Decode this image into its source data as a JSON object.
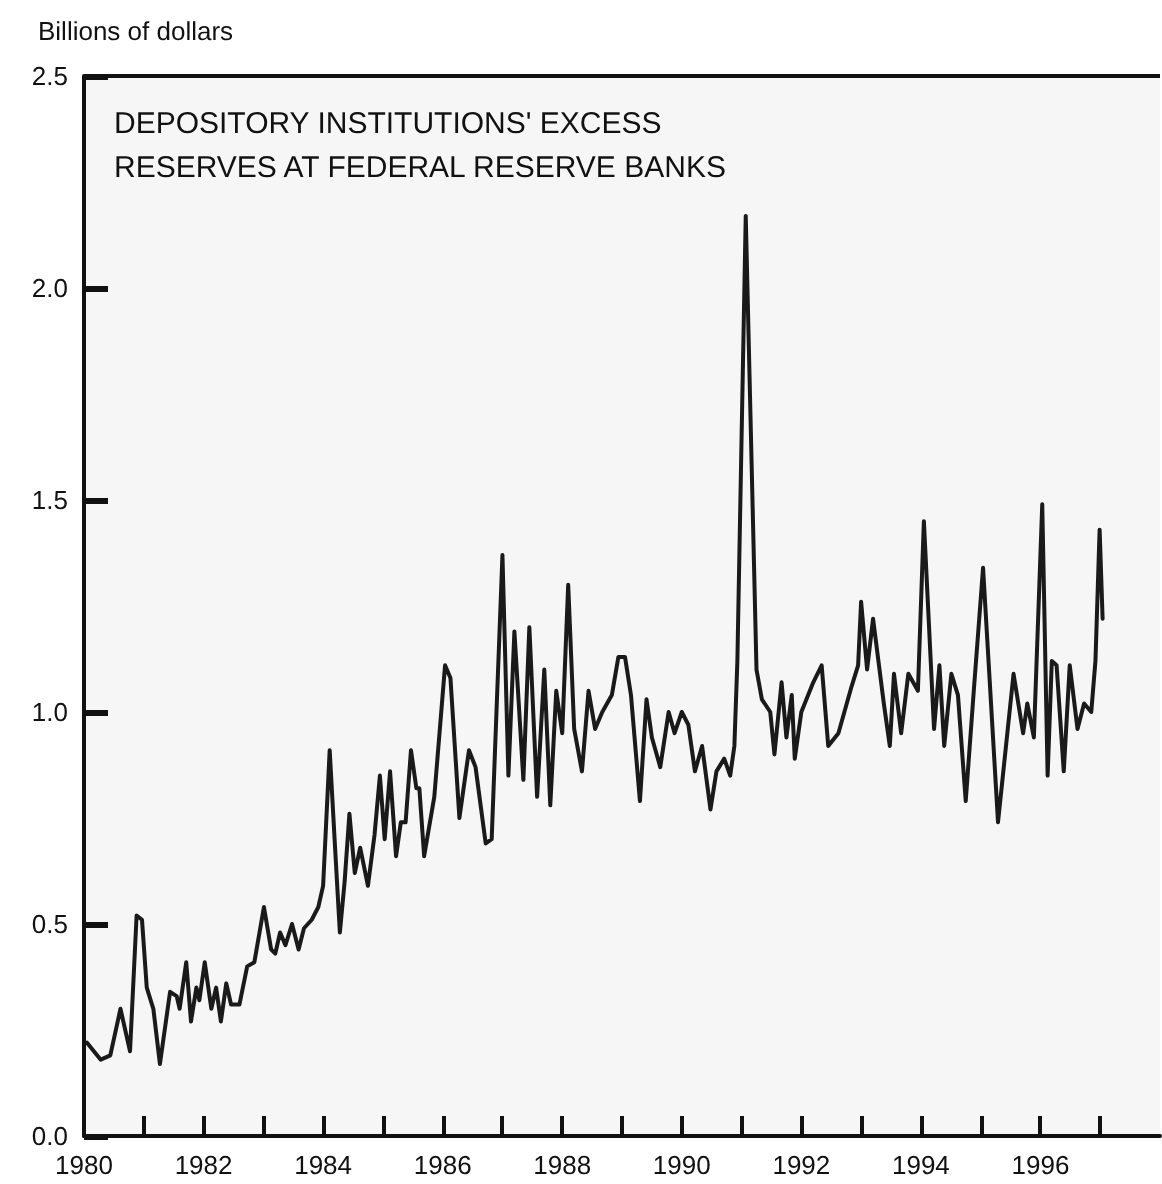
{
  "chart_data": {
    "type": "line",
    "title": "DEPOSITORY INSTITUTIONS' EXCESS\nRESERVES AT FEDERAL RESERVE BANKS",
    "ylabel": "Billions of dollars",
    "xlim": [
      1980,
      1998
    ],
    "xticks": [
      1980,
      {
        "value": 1981,
        "label": null
      },
      1982,
      {
        "value": 1983,
        "label": null
      },
      1984,
      {
        "value": 1985,
        "label": null
      },
      1986,
      {
        "value": 1987,
        "label": null
      },
      1988,
      {
        "value": 1989,
        "label": null
      },
      1990,
      {
        "value": 1991,
        "label": null
      },
      1992,
      {
        "value": 1993,
        "label": null
      },
      1994,
      {
        "value": 1995,
        "label": null
      },
      1996,
      {
        "value": 1997,
        "label": null
      }
    ],
    "ylim": [
      0,
      2.5
    ],
    "yticks": [
      {
        "value": 0,
        "label": "0.0"
      },
      0.5,
      {
        "value": 1,
        "label": "1.0"
      },
      1.5,
      {
        "value": 2,
        "label": "2.0"
      },
      2.5
    ],
    "grid": false,
    "marker": "none",
    "line_style": "solid",
    "series": [
      {
        "color": "#1a1a1a",
        "x": [
          1980.05,
          1980.28,
          1980.44,
          1980.61,
          1980.77,
          1980.88,
          1980.97,
          1981.05,
          1981.16,
          1981.27,
          1981.44,
          1981.55,
          1981.6,
          1981.71,
          1981.79,
          1981.88,
          1981.93,
          1982.02,
          1982.13,
          1982.21,
          1982.29,
          1982.38,
          1982.46,
          1982.6,
          1982.73,
          1982.85,
          1983.01,
          1983.13,
          1983.2,
          1983.28,
          1983.37,
          1983.48,
          1983.59,
          1983.68,
          1983.81,
          1983.92,
          1984.0,
          1984.11,
          1984.2,
          1984.28,
          1984.36,
          1984.44,
          1984.53,
          1984.62,
          1984.75,
          1984.86,
          1984.95,
          1985.03,
          1985.12,
          1985.22,
          1985.3,
          1985.38,
          1985.47,
          1985.56,
          1985.61,
          1985.69,
          1985.86,
          1986.04,
          1986.13,
          1986.28,
          1986.44,
          1986.55,
          1986.72,
          1986.82,
          1986.9,
          1987.0,
          1987.1,
          1987.2,
          1987.35,
          1987.45,
          1987.58,
          1987.7,
          1987.8,
          1987.9,
          1988.0,
          1988.1,
          1988.2,
          1988.33,
          1988.44,
          1988.55,
          1988.67,
          1988.83,
          1988.94,
          1989.05,
          1989.15,
          1989.3,
          1989.41,
          1989.5,
          1989.64,
          1989.78,
          1989.88,
          1990.0,
          1990.11,
          1990.22,
          1990.34,
          1990.48,
          1990.58,
          1990.71,
          1990.81,
          1990.88,
          1990.93,
          1991.07,
          1991.25,
          1991.34,
          1991.48,
          1991.55,
          1991.67,
          1991.75,
          1991.84,
          1991.89,
          1992.0,
          1992.2,
          1992.34,
          1992.45,
          1992.62,
          1992.84,
          1992.95,
          1993.0,
          1993.1,
          1993.2,
          1993.38,
          1993.48,
          1993.55,
          1993.67,
          1993.79,
          1993.95,
          1994.05,
          1994.22,
          1994.31,
          1994.39,
          1994.51,
          1994.62,
          1994.75,
          1994.89,
          1995.04,
          1995.29,
          1995.55,
          1995.71,
          1995.78,
          1995.89,
          1996.03,
          1996.12,
          1996.19,
          1996.27,
          1996.39,
          1996.49,
          1996.62,
          1996.73,
          1996.85,
          1996.92,
          1996.99,
          1997.04
        ],
        "values": [
          0.22,
          0.18,
          0.19,
          0.3,
          0.2,
          0.52,
          0.51,
          0.35,
          0.3,
          0.17,
          0.34,
          0.33,
          0.3,
          0.41,
          0.27,
          0.35,
          0.32,
          0.41,
          0.3,
          0.35,
          0.27,
          0.36,
          0.31,
          0.31,
          0.4,
          0.41,
          0.54,
          0.44,
          0.43,
          0.48,
          0.45,
          0.5,
          0.44,
          0.49,
          0.51,
          0.54,
          0.59,
          0.91,
          0.68,
          0.48,
          0.6,
          0.76,
          0.62,
          0.68,
          0.59,
          0.71,
          0.85,
          0.7,
          0.86,
          0.66,
          0.74,
          0.74,
          0.91,
          0.82,
          0.82,
          0.66,
          0.8,
          1.11,
          1.08,
          0.75,
          0.91,
          0.87,
          0.69,
          0.7,
          1.0,
          1.37,
          0.85,
          1.19,
          0.84,
          1.2,
          0.8,
          1.1,
          0.78,
          1.05,
          0.95,
          1.3,
          0.96,
          0.86,
          1.05,
          0.96,
          1.0,
          1.04,
          1.13,
          1.13,
          1.04,
          0.79,
          1.03,
          0.94,
          0.87,
          1.0,
          0.95,
          1.0,
          0.97,
          0.86,
          0.92,
          0.77,
          0.86,
          0.89,
          0.85,
          0.92,
          1.12,
          2.17,
          1.1,
          1.03,
          1.0,
          0.9,
          1.07,
          0.94,
          1.04,
          0.89,
          1.0,
          1.07,
          1.11,
          0.92,
          0.95,
          1.06,
          1.11,
          1.26,
          1.1,
          1.22,
          1.02,
          0.92,
          1.09,
          0.95,
          1.09,
          1.05,
          1.45,
          0.96,
          1.11,
          0.92,
          1.09,
          1.04,
          0.79,
          1.06,
          1.34,
          0.74,
          1.09,
          0.95,
          1.02,
          0.94,
          1.49,
          0.85,
          1.12,
          1.11,
          0.86,
          1.11,
          0.96,
          1.02,
          1.0,
          1.12,
          1.43,
          1.22
        ]
      }
    ]
  }
}
